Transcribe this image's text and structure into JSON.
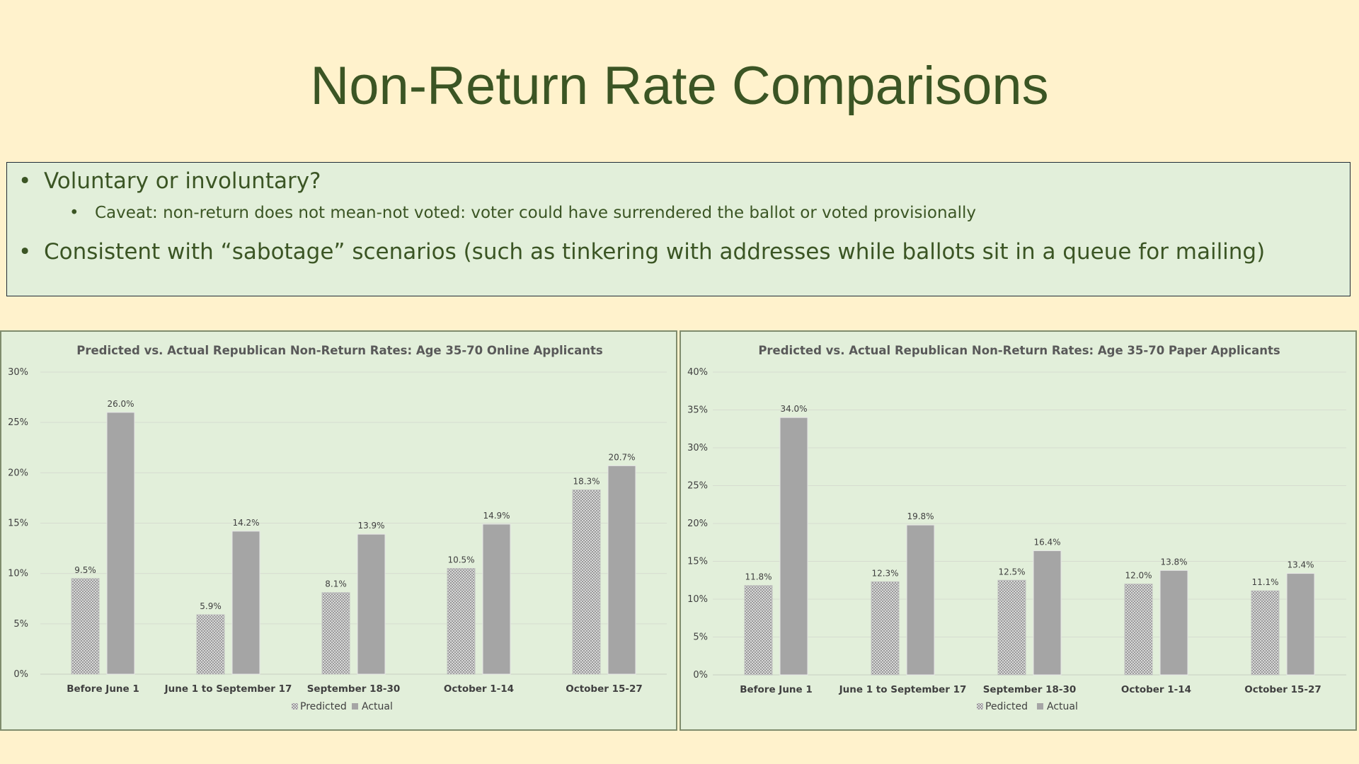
{
  "page": {
    "title": "Non-Return Rate Comparisons",
    "bullets": {
      "b1": "Voluntary or involuntary?",
      "b2": "Caveat: non-return does not mean-not voted: voter could have surrendered the ballot or voted provisionally",
      "b3": "Consistent with “sabotage” scenarios (such as tinkering with addresses while ballots sit in a queue for mailing)"
    },
    "bullet_char": "•"
  },
  "colors": {
    "predicted": "#b5b5b5",
    "actual": "#a5a5a5",
    "grid": "#d6dcd0",
    "title_text": "#3b5524"
  },
  "chart_data": [
    {
      "type": "bar",
      "title": "Predicted vs. Actual Republican Non-Return Rates: Age 35-70 Online Applicants",
      "categories": [
        "Before June 1",
        "June 1 to September 17",
        "September 18-30",
        "October 1-14",
        "October 15-27"
      ],
      "series": [
        {
          "name": "Predicted",
          "values": [
            9.5,
            5.9,
            8.1,
            10.5,
            18.3
          ],
          "labels": [
            "9.5%",
            "5.9%",
            "8.1%",
            "10.5%",
            "18.3%"
          ]
        },
        {
          "name": "Actual",
          "values": [
            26.0,
            14.2,
            13.9,
            14.9,
            20.7
          ],
          "labels": [
            "26.0%",
            "14.2%",
            "13.9%",
            "14.9%",
            "20.7%"
          ]
        }
      ],
      "legend_labels": [
        "Predicted",
        "Actual"
      ],
      "ylim": [
        0,
        30
      ],
      "yticks": [
        "0%",
        "5%",
        "10%",
        "15%",
        "20%",
        "25%",
        "30%"
      ],
      "xlabel": "",
      "ylabel": "",
      "legend": "bottom",
      "grid": true
    },
    {
      "type": "bar",
      "title": "Predicted vs. Actual Republican Non-Return Rates: Age 35-70 Paper Applicants",
      "categories": [
        "Before June 1",
        "June 1 to September 17",
        "September 18-30",
        "October 1-14",
        "October 15-27"
      ],
      "series": [
        {
          "name": "Predicted",
          "values": [
            11.8,
            12.3,
            12.5,
            12.0,
            11.1
          ],
          "labels": [
            "11.8%",
            "12.3%",
            "12.5%",
            "12.0%",
            "11.1%"
          ]
        },
        {
          "name": "Actual",
          "values": [
            34.0,
            19.8,
            16.4,
            13.8,
            13.4
          ],
          "labels": [
            "34.0%",
            "19.8%",
            "16.4%",
            "13.8%",
            "13.4%"
          ]
        }
      ],
      "legend_labels": [
        "Pedicted",
        "Actual"
      ],
      "ylim": [
        0,
        40
      ],
      "yticks": [
        "0%",
        "5%",
        "10%",
        "15%",
        "20%",
        "25%",
        "30%",
        "35%",
        "40%"
      ],
      "xlabel": "",
      "ylabel": "",
      "legend": "bottom",
      "grid": true
    }
  ]
}
